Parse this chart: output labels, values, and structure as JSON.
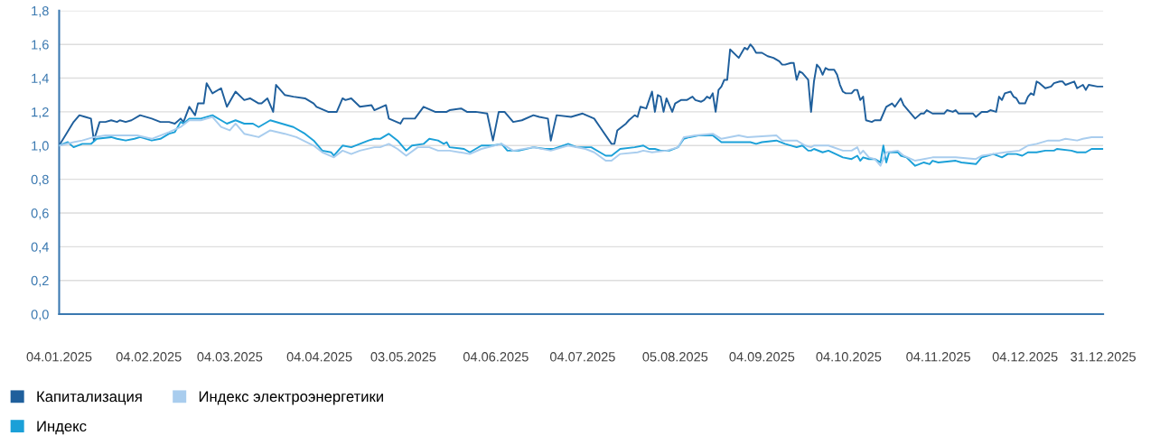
{
  "chart_data": {
    "type": "line",
    "ylim": [
      0,
      1.8
    ],
    "yticks": [
      {
        "value": 0,
        "label": "0,0"
      },
      {
        "value": 0.2,
        "label": "0,2"
      },
      {
        "value": 0.4,
        "label": "0,4"
      },
      {
        "value": 0.6,
        "label": "0,6"
      },
      {
        "value": 0.8,
        "label": "0,8"
      },
      {
        "value": 1.0,
        "label": "1,0"
      },
      {
        "value": 1.2,
        "label": "1,2"
      },
      {
        "value": 1.4,
        "label": "1,4"
      },
      {
        "value": 1.6,
        "label": "1,6"
      },
      {
        "value": 1.8,
        "label": "1,8"
      }
    ],
    "xlim": [
      "2025-01-04",
      "2025-12-31"
    ],
    "xticks": [
      {
        "value": "2025-01-04",
        "label": "04.01.2025"
      },
      {
        "value": "2025-02-04",
        "label": "04.02.2025"
      },
      {
        "value": "2025-03-04",
        "label": "04.03.2025"
      },
      {
        "value": "2025-04-04",
        "label": "04.04.2025"
      },
      {
        "value": "2025-05-03",
        "label": "03.05.2025"
      },
      {
        "value": "2025-06-04",
        "label": "04.06.2025"
      },
      {
        "value": "2025-07-04",
        "label": "04.07.2025"
      },
      {
        "value": "2025-08-05",
        "label": "05.08.2025"
      },
      {
        "value": "2025-09-04",
        "label": "04.09.2025"
      },
      {
        "value": "2025-10-04",
        "label": "04.10.2025"
      },
      {
        "value": "2025-11-04",
        "label": "04.11.2025"
      },
      {
        "value": "2025-12-04",
        "label": "04.12.2025"
      },
      {
        "value": "2025-12-31",
        "label": "31.12.2025"
      }
    ],
    "grid": "y",
    "legend": "bottom",
    "marker": "none",
    "line_style": "solid",
    "series": [
      {
        "name": "Капитализация",
        "color": "#1f5f9c",
        "x": [
          "2025-01-04",
          "2025-01-09",
          "2025-01-11",
          "2025-01-13",
          "2025-01-15",
          "2025-01-16",
          "2025-01-18",
          "2025-01-20",
          "2025-01-22",
          "2025-01-24",
          "2025-01-25",
          "2025-01-27",
          "2025-01-29",
          "2025-02-01",
          "2025-02-05",
          "2025-02-08",
          "2025-02-11",
          "2025-02-13",
          "2025-02-15",
          "2025-02-16",
          "2025-02-18",
          "2025-02-20",
          "2025-02-21",
          "2025-02-23",
          "2025-02-24",
          "2025-02-26",
          "2025-03-01",
          "2025-03-03",
          "2025-03-05",
          "2025-03-06",
          "2025-03-09",
          "2025-03-11",
          "2025-03-14",
          "2025-03-15",
          "2025-03-17",
          "2025-03-19",
          "2025-03-20",
          "2025-03-23",
          "2025-03-26",
          "2025-03-30",
          "2025-04-02",
          "2025-04-03",
          "2025-04-07",
          "2025-04-10",
          "2025-04-12",
          "2025-04-13",
          "2025-04-15",
          "2025-04-18",
          "2025-04-22",
          "2025-04-23",
          "2025-04-27",
          "2025-04-28",
          "2025-05-02",
          "2025-05-03",
          "2025-05-07",
          "2025-05-10",
          "2025-05-14",
          "2025-05-18",
          "2025-05-19",
          "2025-05-23",
          "2025-05-25",
          "2025-05-28",
          "2025-06-01",
          "2025-06-03",
          "2025-06-05",
          "2025-06-07",
          "2025-06-10",
          "2025-06-13",
          "2025-06-17",
          "2025-06-19",
          "2025-06-22",
          "2025-06-23",
          "2025-06-25",
          "2025-06-30",
          "2025-07-04",
          "2025-07-08",
          "2025-07-10",
          "2025-07-14",
          "2025-07-15",
          "2025-07-16",
          "2025-07-19",
          "2025-07-20",
          "2025-07-22",
          "2025-07-23",
          "2025-07-24",
          "2025-07-26",
          "2025-07-28",
          "2025-07-29",
          "2025-07-30",
          "2025-07-31",
          "2025-08-01",
          "2025-08-02",
          "2025-08-04",
          "2025-08-05",
          "2025-08-07",
          "2025-08-09",
          "2025-08-11",
          "2025-08-12",
          "2025-08-14",
          "2025-08-15",
          "2025-08-16",
          "2025-08-17",
          "2025-08-18",
          "2025-08-19",
          "2025-08-20",
          "2025-08-21",
          "2025-08-22",
          "2025-08-23",
          "2025-08-24",
          "2025-08-27",
          "2025-08-28",
          "2025-08-29",
          "2025-08-30",
          "2025-08-31",
          "2025-09-01",
          "2025-09-02",
          "2025-09-04",
          "2025-09-06",
          "2025-09-08",
          "2025-09-10",
          "2025-09-11",
          "2025-09-12",
          "2025-09-14",
          "2025-09-15",
          "2025-09-16",
          "2025-09-17",
          "2025-09-18",
          "2025-09-20",
          "2025-09-21",
          "2025-09-22",
          "2025-09-23",
          "2025-09-24",
          "2025-09-25",
          "2025-09-26",
          "2025-09-27",
          "2025-09-29",
          "2025-09-30",
          "2025-10-01",
          "2025-10-02",
          "2025-10-03",
          "2025-10-05",
          "2025-10-06",
          "2025-10-07",
          "2025-10-08",
          "2025-10-09",
          "2025-10-10",
          "2025-10-12",
          "2025-10-13",
          "2025-10-15",
          "2025-10-17",
          "2025-10-19",
          "2025-10-20",
          "2025-10-22",
          "2025-10-23",
          "2025-10-25",
          "2025-10-27",
          "2025-10-29",
          "2025-10-30",
          "2025-10-31",
          "2025-11-02",
          "2025-11-06",
          "2025-11-07",
          "2025-11-09",
          "2025-11-10",
          "2025-11-11",
          "2025-11-16",
          "2025-11-17",
          "2025-11-19",
          "2025-11-21",
          "2025-11-22",
          "2025-11-24",
          "2025-11-25",
          "2025-11-26",
          "2025-11-27",
          "2025-11-29",
          "2025-11-30",
          "2025-12-01",
          "2025-12-02",
          "2025-12-04",
          "2025-12-05",
          "2025-12-06",
          "2025-12-07",
          "2025-12-08",
          "2025-12-09",
          "2025-12-11",
          "2025-12-13",
          "2025-12-14",
          "2025-12-16",
          "2025-12-17",
          "2025-12-18",
          "2025-12-21",
          "2025-12-22",
          "2025-12-24",
          "2025-12-25",
          "2025-12-26",
          "2025-12-29",
          "2025-12-31"
        ],
        "values": [
          1.0,
          1.14,
          1.18,
          1.17,
          1.16,
          1.03,
          1.14,
          1.14,
          1.15,
          1.14,
          1.15,
          1.14,
          1.15,
          1.18,
          1.16,
          1.14,
          1.14,
          1.13,
          1.16,
          1.14,
          1.23,
          1.18,
          1.25,
          1.25,
          1.37,
          1.31,
          1.34,
          1.23,
          1.29,
          1.32,
          1.27,
          1.28,
          1.25,
          1.25,
          1.28,
          1.2,
          1.36,
          1.3,
          1.29,
          1.28,
          1.25,
          1.23,
          1.2,
          1.2,
          1.28,
          1.27,
          1.28,
          1.23,
          1.24,
          1.21,
          1.24,
          1.16,
          1.13,
          1.16,
          1.16,
          1.23,
          1.2,
          1.2,
          1.21,
          1.22,
          1.2,
          1.2,
          1.19,
          1.03,
          1.2,
          1.2,
          1.14,
          1.15,
          1.18,
          1.17,
          1.16,
          1.03,
          1.18,
          1.17,
          1.19,
          1.16,
          1.11,
          1.01,
          1.01,
          1.09,
          1.13,
          1.15,
          1.18,
          1.17,
          1.23,
          1.22,
          1.32,
          1.2,
          1.3,
          1.29,
          1.2,
          1.28,
          1.2,
          1.25,
          1.27,
          1.27,
          1.29,
          1.27,
          1.26,
          1.27,
          1.29,
          1.28,
          1.31,
          1.2,
          1.33,
          1.35,
          1.39,
          1.39,
          1.57,
          1.52,
          1.55,
          1.58,
          1.57,
          1.6,
          1.58,
          1.55,
          1.55,
          1.53,
          1.52,
          1.5,
          1.48,
          1.48,
          1.49,
          1.49,
          1.39,
          1.44,
          1.43,
          1.39,
          1.2,
          1.38,
          1.48,
          1.46,
          1.42,
          1.46,
          1.45,
          1.45,
          1.42,
          1.36,
          1.32,
          1.31,
          1.31,
          1.33,
          1.33,
          1.27,
          1.29,
          1.15,
          1.14,
          1.15,
          1.15,
          1.23,
          1.25,
          1.23,
          1.28,
          1.24,
          1.2,
          1.16,
          1.19,
          1.19,
          1.21,
          1.19,
          1.19,
          1.21,
          1.2,
          1.21,
          1.19,
          1.19,
          1.17,
          1.2,
          1.2,
          1.21,
          1.2,
          1.29,
          1.27,
          1.31,
          1.32,
          1.29,
          1.28,
          1.25,
          1.25,
          1.29,
          1.31,
          1.3,
          1.38,
          1.37,
          1.34,
          1.35,
          1.37,
          1.38,
          1.38,
          1.36,
          1.38,
          1.34,
          1.36,
          1.33,
          1.36,
          1.35,
          1.35
        ]
      },
      {
        "name": "Индекс",
        "color": "#1ba0d8",
        "x": [
          "2025-01-04",
          "2025-01-07",
          "2025-01-09",
          "2025-01-12",
          "2025-01-15",
          "2025-01-17",
          "2025-01-22",
          "2025-01-24",
          "2025-01-27",
          "2025-01-30",
          "2025-02-01",
          "2025-02-05",
          "2025-02-08",
          "2025-02-11",
          "2025-02-13",
          "2025-02-15",
          "2025-02-16",
          "2025-02-18",
          "2025-02-22",
          "2025-02-26",
          "2025-03-01",
          "2025-03-03",
          "2025-03-06",
          "2025-03-09",
          "2025-03-12",
          "2025-03-14",
          "2025-03-18",
          "2025-03-22",
          "2025-03-26",
          "2025-03-30",
          "2025-04-02",
          "2025-04-05",
          "2025-04-08",
          "2025-04-09",
          "2025-04-12",
          "2025-04-15",
          "2025-04-18",
          "2025-04-21",
          "2025-04-23",
          "2025-04-25",
          "2025-04-28",
          "2025-05-01",
          "2025-05-04",
          "2025-05-06",
          "2025-05-10",
          "2025-05-12",
          "2025-05-15",
          "2025-05-17",
          "2025-05-18",
          "2025-05-19",
          "2025-05-24",
          "2025-05-26",
          "2025-05-30",
          "2025-06-03",
          "2025-06-06",
          "2025-06-08",
          "2025-06-12",
          "2025-06-17",
          "2025-06-21",
          "2025-06-24",
          "2025-06-29",
          "2025-07-02",
          "2025-07-07",
          "2025-07-10",
          "2025-07-12",
          "2025-07-14",
          "2025-07-17",
          "2025-07-22",
          "2025-07-25",
          "2025-07-27",
          "2025-07-29",
          "2025-07-31",
          "2025-08-03",
          "2025-08-06",
          "2025-08-08",
          "2025-08-10",
          "2025-08-13",
          "2025-08-18",
          "2025-08-21",
          "2025-08-24",
          "2025-08-31",
          "2025-09-02",
          "2025-09-04",
          "2025-09-09",
          "2025-09-12",
          "2025-09-16",
          "2025-09-18",
          "2025-09-20",
          "2025-09-21",
          "2025-09-22",
          "2025-09-25",
          "2025-09-27",
          "2025-10-02",
          "2025-10-05",
          "2025-10-07",
          "2025-10-08",
          "2025-10-09",
          "2025-10-11",
          "2025-10-13",
          "2025-10-15",
          "2025-10-16",
          "2025-10-17",
          "2025-10-18",
          "2025-10-21",
          "2025-10-22",
          "2025-10-24",
          "2025-10-27",
          "2025-10-30",
          "2025-11-01",
          "2025-11-02",
          "2025-11-04",
          "2025-11-10",
          "2025-11-12",
          "2025-11-17",
          "2025-11-19",
          "2025-11-21",
          "2025-11-23",
          "2025-11-26",
          "2025-11-28",
          "2025-12-01",
          "2025-12-03",
          "2025-12-05",
          "2025-12-08",
          "2025-12-11",
          "2025-12-14",
          "2025-12-15",
          "2025-12-20",
          "2025-12-22",
          "2025-12-25",
          "2025-12-27",
          "2025-12-29",
          "2025-12-31"
        ],
        "values": [
          1.0,
          1.02,
          0.99,
          1.01,
          1.01,
          1.04,
          1.05,
          1.04,
          1.03,
          1.04,
          1.05,
          1.03,
          1.04,
          1.07,
          1.08,
          1.14,
          1.13,
          1.16,
          1.16,
          1.18,
          1.15,
          1.13,
          1.15,
          1.13,
          1.13,
          1.11,
          1.15,
          1.13,
          1.11,
          1.07,
          1.03,
          0.97,
          0.96,
          0.94,
          1.0,
          0.99,
          1.01,
          1.03,
          1.04,
          1.04,
          1.07,
          1.03,
          0.97,
          1.0,
          1.01,
          1.04,
          1.03,
          1.01,
          1.02,
          0.99,
          0.98,
          0.96,
          1.0,
          1.0,
          1.01,
          0.97,
          0.97,
          0.99,
          0.98,
          0.98,
          1.01,
          0.99,
          0.99,
          0.96,
          0.94,
          0.94,
          0.98,
          0.99,
          1.0,
          0.98,
          0.98,
          0.97,
          0.97,
          0.99,
          1.04,
          1.05,
          1.06,
          1.06,
          1.02,
          1.02,
          1.02,
          1.01,
          1.02,
          1.03,
          1.01,
          0.99,
          1.0,
          0.97,
          0.97,
          0.98,
          0.96,
          0.97,
          0.93,
          0.92,
          0.94,
          0.91,
          0.93,
          0.92,
          0.92,
          0.9,
          1.0,
          0.9,
          0.96,
          0.96,
          0.94,
          0.93,
          0.88,
          0.9,
          0.89,
          0.91,
          0.9,
          0.91,
          0.9,
          0.89,
          0.93,
          0.94,
          0.95,
          0.93,
          0.95,
          0.95,
          0.94,
          0.96,
          0.96,
          0.97,
          0.97,
          0.98,
          0.97,
          0.96,
          0.96,
          0.98,
          0.98,
          0.98
        ]
      },
      {
        "name": "Индекс электроэнергетики",
        "color": "#a9cdee",
        "x": [
          "2025-01-04",
          "2025-01-09",
          "2025-01-12",
          "2025-01-16",
          "2025-01-20",
          "2025-01-24",
          "2025-01-27",
          "2025-01-31",
          "2025-02-05",
          "2025-02-11",
          "2025-02-15",
          "2025-02-18",
          "2025-02-22",
          "2025-02-26",
          "2025-03-01",
          "2025-03-04",
          "2025-03-06",
          "2025-03-09",
          "2025-03-14",
          "2025-03-18",
          "2025-03-23",
          "2025-03-27",
          "2025-04-02",
          "2025-04-05",
          "2025-04-09",
          "2025-04-12",
          "2025-04-15",
          "2025-04-18",
          "2025-04-23",
          "2025-04-25",
          "2025-04-28",
          "2025-05-01",
          "2025-05-04",
          "2025-05-08",
          "2025-05-12",
          "2025-05-15",
          "2025-05-19",
          "2025-05-26",
          "2025-05-30",
          "2025-06-06",
          "2025-06-10",
          "2025-06-17",
          "2025-06-23",
          "2025-06-29",
          "2025-07-05",
          "2025-07-08",
          "2025-07-12",
          "2025-07-14",
          "2025-07-17",
          "2025-07-23",
          "2025-07-25",
          "2025-07-28",
          "2025-08-02",
          "2025-08-06",
          "2025-08-08",
          "2025-08-12",
          "2025-08-18",
          "2025-08-21",
          "2025-08-27",
          "2025-08-30",
          "2025-09-09",
          "2025-09-11",
          "2025-09-16",
          "2025-09-19",
          "2025-09-21",
          "2025-09-22",
          "2025-09-27",
          "2025-10-02",
          "2025-10-05",
          "2025-10-07",
          "2025-10-08",
          "2025-10-09",
          "2025-10-11",
          "2025-10-13",
          "2025-10-15",
          "2025-10-17",
          "2025-10-21",
          "2025-10-23",
          "2025-10-27",
          "2025-10-30",
          "2025-11-02",
          "2025-11-10",
          "2025-11-17",
          "2025-11-19",
          "2025-11-23",
          "2025-11-27",
          "2025-12-02",
          "2025-12-05",
          "2025-12-08",
          "2025-12-12",
          "2025-12-16",
          "2025-12-18",
          "2025-12-22",
          "2025-12-24",
          "2025-12-27",
          "2025-12-31"
        ],
        "values": [
          1.0,
          1.02,
          1.03,
          1.05,
          1.06,
          1.06,
          1.06,
          1.06,
          1.04,
          1.08,
          1.11,
          1.15,
          1.15,
          1.17,
          1.11,
          1.09,
          1.13,
          1.07,
          1.05,
          1.09,
          1.07,
          1.05,
          1.0,
          0.96,
          0.93,
          0.97,
          0.95,
          0.97,
          0.99,
          0.99,
          1.01,
          0.98,
          0.94,
          0.99,
          0.99,
          0.97,
          0.97,
          0.95,
          0.98,
          1.01,
          0.97,
          0.99,
          0.97,
          1.0,
          0.98,
          0.96,
          0.91,
          0.91,
          0.95,
          0.96,
          0.97,
          0.96,
          0.97,
          0.99,
          1.05,
          1.06,
          1.07,
          1.04,
          1.06,
          1.05,
          1.06,
          1.03,
          1.03,
          1.0,
          0.99,
          1.0,
          1.0,
          0.97,
          0.97,
          0.99,
          0.95,
          0.97,
          0.93,
          0.92,
          0.88,
          0.96,
          0.97,
          0.94,
          0.91,
          0.92,
          0.93,
          0.93,
          0.92,
          0.94,
          0.95,
          0.96,
          0.97,
          1.0,
          1.01,
          1.03,
          1.03,
          1.04,
          1.03,
          1.04,
          1.05,
          1.05
        ]
      }
    ]
  }
}
